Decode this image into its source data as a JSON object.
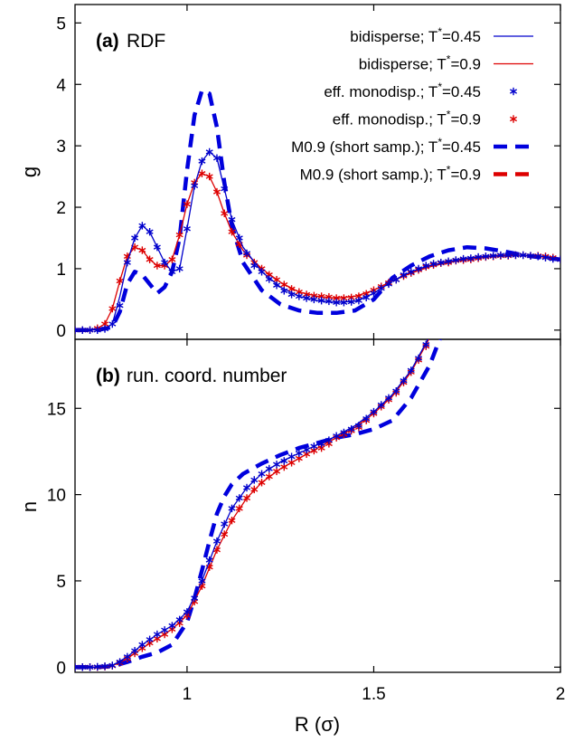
{
  "chart_data": [
    {
      "type": "line",
      "panel_label": "(a)",
      "panel_title": "RDF",
      "ylabel": "g",
      "xlim": [
        0.7,
        2.0
      ],
      "ylim": [
        -0.15,
        5.3
      ],
      "yticks": [
        "0",
        "1",
        "2",
        "3",
        "4",
        "5"
      ],
      "legend_position": "top-right",
      "legend": [
        {
          "text": "bidisperse; T",
          "sup": "*",
          "tail": "=0.45"
        },
        {
          "text": "bidisperse; T",
          "sup": "*",
          "tail": "=0.9"
        },
        {
          "text": "eff. monodisp.; T",
          "sup": "*",
          "tail": "=0.45"
        },
        {
          "text": "eff. monodisp.; T",
          "sup": "*",
          "tail": "=0.9"
        },
        {
          "text": "M0.9 (short samp.); T",
          "sup": "*",
          "tail": "=0.45"
        },
        {
          "text": "M0.9 (short samp.); T",
          "sup": "*",
          "tail": "=0.9"
        }
      ],
      "series": [
        {
          "color": "#0000cc",
          "style": "thin-line",
          "x": [
            0.7,
            0.74,
            0.78,
            0.8,
            0.82,
            0.84,
            0.86,
            0.88,
            0.9,
            0.92,
            0.94,
            0.96,
            0.98,
            1.0,
            1.02,
            1.04,
            1.06,
            1.08,
            1.1,
            1.12,
            1.15,
            1.2,
            1.25,
            1.3,
            1.35,
            1.4,
            1.45,
            1.5,
            1.55,
            1.6,
            1.65,
            1.7,
            1.75,
            1.8,
            1.85,
            1.9,
            1.95,
            2.0
          ],
          "y": [
            0.0,
            0.0,
            0.02,
            0.1,
            0.55,
            1.1,
            1.5,
            1.7,
            1.6,
            1.35,
            1.1,
            0.95,
            1.0,
            1.65,
            2.35,
            2.75,
            2.9,
            2.8,
            2.3,
            1.8,
            1.35,
            0.95,
            0.7,
            0.55,
            0.48,
            0.45,
            0.47,
            0.6,
            0.8,
            0.95,
            1.05,
            1.12,
            1.17,
            1.2,
            1.22,
            1.22,
            1.2,
            1.15
          ]
        },
        {
          "color": "#dd0000",
          "style": "thin-line",
          "x": [
            0.7,
            0.74,
            0.76,
            0.78,
            0.8,
            0.82,
            0.84,
            0.86,
            0.88,
            0.9,
            0.92,
            0.94,
            0.96,
            0.98,
            1.0,
            1.02,
            1.04,
            1.06,
            1.08,
            1.1,
            1.12,
            1.15,
            1.2,
            1.25,
            1.3,
            1.35,
            1.4,
            1.45,
            1.5,
            1.55,
            1.6,
            1.65,
            1.7,
            1.75,
            1.8,
            1.85,
            1.9,
            1.95,
            2.0
          ],
          "y": [
            0.0,
            0.0,
            0.03,
            0.1,
            0.35,
            0.8,
            1.2,
            1.35,
            1.3,
            1.15,
            1.05,
            1.05,
            1.15,
            1.55,
            2.05,
            2.4,
            2.55,
            2.5,
            2.25,
            1.9,
            1.6,
            1.3,
            1.0,
            0.78,
            0.62,
            0.55,
            0.52,
            0.55,
            0.65,
            0.8,
            0.93,
            1.03,
            1.1,
            1.15,
            1.19,
            1.21,
            1.22,
            1.2,
            1.15
          ]
        },
        {
          "color": "#0000cc",
          "style": "stars",
          "x": [
            0.7,
            0.72,
            0.74,
            0.76,
            0.78,
            0.8,
            0.82,
            0.84,
            0.86,
            0.88,
            0.9,
            0.92,
            0.94,
            0.96,
            0.98,
            1.0,
            1.02,
            1.04,
            1.06,
            1.08,
            1.1,
            1.12,
            1.14,
            1.16,
            1.18,
            1.2,
            1.22,
            1.24,
            1.26,
            1.28,
            1.3,
            1.32,
            1.34,
            1.36,
            1.38,
            1.4,
            1.42,
            1.44,
            1.46,
            1.48,
            1.5,
            1.52,
            1.54,
            1.56,
            1.58,
            1.6,
            1.62,
            1.64,
            1.66,
            1.68,
            1.7,
            1.72,
            1.74,
            1.76,
            1.78,
            1.8,
            1.82,
            1.84,
            1.86,
            1.88,
            1.9,
            1.92,
            1.94,
            1.96,
            1.98,
            2.0
          ],
          "y": [
            0.0,
            0.0,
            0.0,
            0.0,
            0.02,
            0.1,
            0.4,
            1.1,
            1.5,
            1.7,
            1.6,
            1.35,
            1.1,
            0.95,
            1.0,
            1.65,
            2.35,
            2.75,
            2.9,
            2.8,
            2.3,
            1.8,
            1.5,
            1.25,
            1.05,
            0.95,
            0.83,
            0.73,
            0.64,
            0.58,
            0.55,
            0.52,
            0.5,
            0.48,
            0.47,
            0.45,
            0.45,
            0.46,
            0.48,
            0.53,
            0.6,
            0.68,
            0.75,
            0.82,
            0.9,
            0.95,
            1.0,
            1.05,
            1.08,
            1.1,
            1.12,
            1.14,
            1.16,
            1.17,
            1.19,
            1.2,
            1.21,
            1.22,
            1.22,
            1.22,
            1.22,
            1.21,
            1.2,
            1.18,
            1.16,
            1.15
          ]
        },
        {
          "color": "#dd0000",
          "style": "stars",
          "x": [
            0.7,
            0.72,
            0.74,
            0.76,
            0.78,
            0.8,
            0.82,
            0.84,
            0.86,
            0.88,
            0.9,
            0.92,
            0.94,
            0.96,
            0.98,
            1.0,
            1.02,
            1.04,
            1.06,
            1.08,
            1.1,
            1.12,
            1.14,
            1.16,
            1.18,
            1.2,
            1.22,
            1.24,
            1.26,
            1.28,
            1.3,
            1.32,
            1.34,
            1.36,
            1.38,
            1.4,
            1.42,
            1.44,
            1.46,
            1.48,
            1.5,
            1.52,
            1.54,
            1.56,
            1.58,
            1.6,
            1.62,
            1.64,
            1.66,
            1.68,
            1.7,
            1.72,
            1.74,
            1.76,
            1.78,
            1.8,
            1.82,
            1.84,
            1.86,
            1.88,
            1.9,
            1.92,
            1.94,
            1.96,
            1.98,
            2.0
          ],
          "y": [
            0.0,
            0.0,
            0.0,
            0.03,
            0.1,
            0.35,
            0.8,
            1.2,
            1.35,
            1.3,
            1.15,
            1.05,
            1.05,
            1.15,
            1.55,
            2.05,
            2.4,
            2.55,
            2.5,
            2.25,
            1.9,
            1.6,
            1.4,
            1.22,
            1.1,
            1.0,
            0.9,
            0.82,
            0.74,
            0.67,
            0.62,
            0.58,
            0.56,
            0.55,
            0.54,
            0.52,
            0.52,
            0.53,
            0.55,
            0.59,
            0.65,
            0.71,
            0.77,
            0.82,
            0.88,
            0.93,
            0.98,
            1.03,
            1.06,
            1.09,
            1.1,
            1.13,
            1.14,
            1.15,
            1.17,
            1.19,
            1.2,
            1.21,
            1.21,
            1.22,
            1.22,
            1.21,
            1.21,
            1.2,
            1.18,
            1.15
          ]
        },
        {
          "color": "#0000dd",
          "style": "thick-dash",
          "x": [
            0.7,
            0.76,
            0.8,
            0.82,
            0.84,
            0.86,
            0.88,
            0.9,
            0.92,
            0.94,
            0.96,
            0.98,
            1.0,
            1.02,
            1.04,
            1.06,
            1.08,
            1.1,
            1.12,
            1.15,
            1.2,
            1.25,
            1.3,
            1.35,
            1.4,
            1.45,
            1.5,
            1.55,
            1.6,
            1.65,
            1.7,
            1.75,
            1.8,
            1.85,
            1.9,
            1.95,
            2.0
          ],
          "y": [
            0.0,
            0.0,
            0.05,
            0.3,
            0.75,
            0.95,
            0.9,
            0.75,
            0.6,
            0.7,
            0.95,
            1.5,
            2.6,
            3.5,
            3.9,
            3.85,
            3.3,
            2.4,
            1.7,
            1.1,
            0.65,
            0.42,
            0.32,
            0.28,
            0.28,
            0.32,
            0.5,
            0.85,
            1.05,
            1.2,
            1.3,
            1.35,
            1.33,
            1.28,
            1.22,
            1.18,
            1.15
          ]
        }
      ]
    },
    {
      "type": "line",
      "panel_label": "(b)",
      "panel_title": "run. coord. number",
      "ylabel": "n",
      "xlabel": "R (σ)",
      "xlim": [
        0.7,
        2.0
      ],
      "ylim": [
        -0.3,
        19.0
      ],
      "xticks": [
        "1",
        "1.5",
        "2"
      ],
      "yticks": [
        "0",
        "5",
        "10",
        "15"
      ],
      "series": [
        {
          "color": "#0000cc",
          "style": "thin-line",
          "x": [
            0.7,
            0.75,
            0.8,
            0.84,
            0.88,
            0.92,
            0.96,
            1.0,
            1.04,
            1.08,
            1.12,
            1.16,
            1.2,
            1.25,
            1.3,
            1.35,
            1.4,
            1.45,
            1.5,
            1.55,
            1.6,
            1.65
          ],
          "y": [
            0.0,
            0.0,
            0.1,
            0.6,
            1.3,
            1.9,
            2.4,
            3.2,
            5.0,
            7.3,
            9.2,
            10.4,
            11.2,
            11.9,
            12.4,
            12.9,
            13.4,
            14.0,
            14.8,
            15.8,
            17.2,
            19.2
          ]
        },
        {
          "color": "#dd0000",
          "style": "thin-line",
          "x": [
            0.7,
            0.75,
            0.8,
            0.84,
            0.88,
            0.92,
            0.96,
            1.0,
            1.04,
            1.08,
            1.12,
            1.16,
            1.2,
            1.25,
            1.3,
            1.35,
            1.4,
            1.45,
            1.5,
            1.55,
            1.6,
            1.65
          ],
          "y": [
            0.0,
            0.0,
            0.08,
            0.5,
            1.1,
            1.65,
            2.2,
            3.0,
            4.7,
            6.8,
            8.5,
            9.8,
            10.7,
            11.5,
            12.1,
            12.7,
            13.3,
            13.9,
            14.7,
            15.7,
            17.1,
            19.1
          ]
        },
        {
          "color": "#0000cc",
          "style": "stars",
          "x": [
            0.7,
            0.72,
            0.74,
            0.76,
            0.78,
            0.8,
            0.82,
            0.84,
            0.86,
            0.88,
            0.9,
            0.92,
            0.94,
            0.96,
            0.98,
            1.0,
            1.02,
            1.04,
            1.06,
            1.08,
            1.1,
            1.12,
            1.14,
            1.16,
            1.18,
            1.2,
            1.22,
            1.24,
            1.26,
            1.28,
            1.3,
            1.32,
            1.34,
            1.36,
            1.38,
            1.4,
            1.42,
            1.44,
            1.46,
            1.48,
            1.5,
            1.52,
            1.54,
            1.56,
            1.58,
            1.6,
            1.62,
            1.64
          ],
          "y": [
            0.0,
            0.0,
            0.0,
            0.02,
            0.05,
            0.1,
            0.3,
            0.6,
            0.95,
            1.3,
            1.6,
            1.9,
            2.15,
            2.4,
            2.75,
            3.2,
            4.0,
            5.0,
            6.2,
            7.3,
            8.3,
            9.2,
            9.8,
            10.4,
            10.85,
            11.2,
            11.5,
            11.75,
            11.95,
            12.2,
            12.4,
            12.6,
            12.8,
            12.95,
            13.15,
            13.4,
            13.6,
            13.8,
            14.0,
            14.4,
            14.8,
            15.2,
            15.6,
            16.0,
            16.6,
            17.2,
            17.9,
            18.7
          ]
        },
        {
          "color": "#dd0000",
          "style": "stars",
          "x": [
            0.7,
            0.72,
            0.74,
            0.76,
            0.78,
            0.8,
            0.82,
            0.84,
            0.86,
            0.88,
            0.9,
            0.92,
            0.94,
            0.96,
            0.98,
            1.0,
            1.02,
            1.04,
            1.06,
            1.08,
            1.1,
            1.12,
            1.14,
            1.16,
            1.18,
            1.2,
            1.22,
            1.24,
            1.26,
            1.28,
            1.3,
            1.32,
            1.34,
            1.36,
            1.38,
            1.4,
            1.42,
            1.44,
            1.46,
            1.48,
            1.5,
            1.52,
            1.54,
            1.56,
            1.58,
            1.6,
            1.62,
            1.64
          ],
          "y": [
            0.0,
            0.0,
            0.0,
            0.0,
            0.03,
            0.08,
            0.25,
            0.5,
            0.8,
            1.1,
            1.4,
            1.65,
            1.9,
            2.2,
            2.55,
            3.0,
            3.8,
            4.7,
            5.8,
            6.8,
            7.7,
            8.5,
            9.2,
            9.8,
            10.3,
            10.7,
            11.05,
            11.35,
            11.6,
            11.85,
            12.1,
            12.35,
            12.55,
            12.7,
            12.95,
            13.3,
            13.5,
            13.7,
            13.9,
            14.3,
            14.7,
            15.1,
            15.5,
            15.9,
            16.5,
            17.1,
            17.8,
            18.6
          ]
        },
        {
          "color": "#0000dd",
          "style": "thick-dash",
          "x": [
            0.7,
            0.76,
            0.8,
            0.84,
            0.88,
            0.92,
            0.96,
            1.0,
            1.02,
            1.04,
            1.06,
            1.08,
            1.1,
            1.12,
            1.15,
            1.2,
            1.25,
            1.3,
            1.35,
            1.4,
            1.45,
            1.5,
            1.55,
            1.6,
            1.65,
            1.68
          ],
          "y": [
            0.0,
            0.0,
            0.05,
            0.3,
            0.6,
            0.85,
            1.3,
            2.6,
            4.0,
            5.6,
            7.3,
            8.9,
            9.9,
            10.6,
            11.2,
            11.8,
            12.3,
            12.7,
            13.0,
            13.3,
            13.5,
            13.8,
            14.3,
            15.6,
            17.5,
            19.2
          ]
        }
      ]
    }
  ]
}
